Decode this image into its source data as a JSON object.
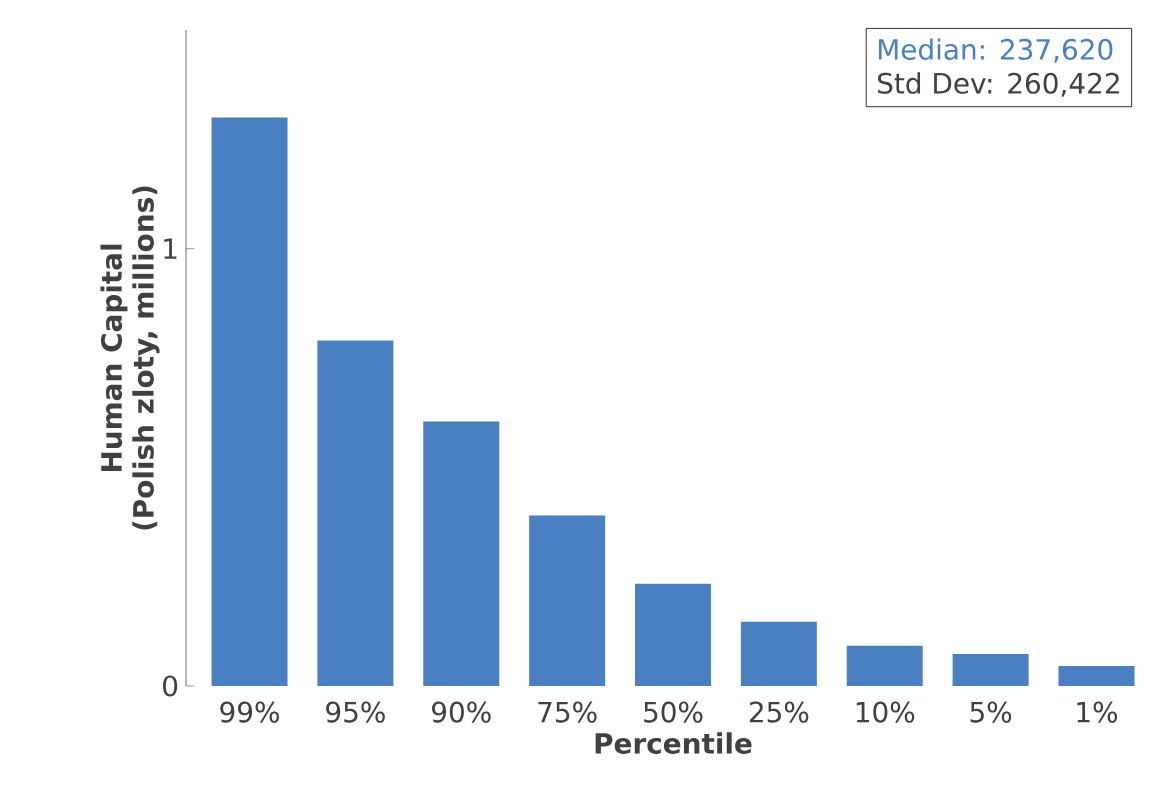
{
  "chart_data": {
    "type": "bar",
    "xlabel": "Percentile",
    "ylabel": "Human Capital\n(Polish zloty, millions)",
    "categories": [
      "99%",
      "95%",
      "90%",
      "75%",
      "50%",
      "25%",
      "10%",
      "5%",
      "1%"
    ],
    "values": [
      1.3,
      0.79,
      0.605,
      0.39,
      0.234,
      0.147,
      0.092,
      0.073,
      0.046
    ],
    "color": "#4a7fc1",
    "ylim": [
      0,
      1.5
    ],
    "yticks": [
      0,
      1
    ],
    "annotations": [
      "Median: 237,620",
      "Std Dev: 260,422"
    ]
  }
}
